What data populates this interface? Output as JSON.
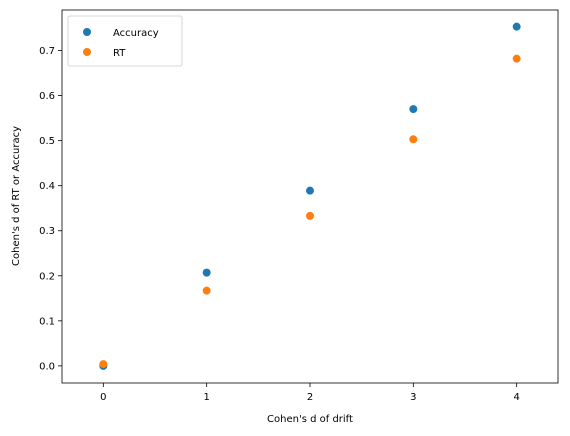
{
  "chart_data": {
    "type": "scatter",
    "title": "",
    "xlabel": "Cohen's d of drift",
    "ylabel": "Cohen's d of RT or Accuracy",
    "xlim": [
      -0.4,
      4.4
    ],
    "ylim": [
      -0.038,
      0.79
    ],
    "xticks": [
      0,
      1,
      2,
      3,
      4
    ],
    "yticks": [
      0.0,
      0.1,
      0.2,
      0.3,
      0.4,
      0.5,
      0.6,
      0.7
    ],
    "xtick_labels": [
      "0",
      "1",
      "2",
      "3",
      "4"
    ],
    "ytick_labels": [
      "0.0",
      "0.1",
      "0.2",
      "0.3",
      "0.4",
      "0.5",
      "0.6",
      "0.7"
    ],
    "grid": false,
    "legend_position": "top-left",
    "series": [
      {
        "name": "Accuracy",
        "color": "#1f77b4",
        "x": [
          0,
          1,
          2,
          3,
          4
        ],
        "y": [
          0.0,
          0.207,
          0.389,
          0.57,
          0.753
        ]
      },
      {
        "name": "RT",
        "color": "#ff7f0e",
        "x": [
          0,
          1,
          2,
          3,
          4
        ],
        "y": [
          0.004,
          0.167,
          0.333,
          0.503,
          0.682
        ]
      }
    ]
  }
}
